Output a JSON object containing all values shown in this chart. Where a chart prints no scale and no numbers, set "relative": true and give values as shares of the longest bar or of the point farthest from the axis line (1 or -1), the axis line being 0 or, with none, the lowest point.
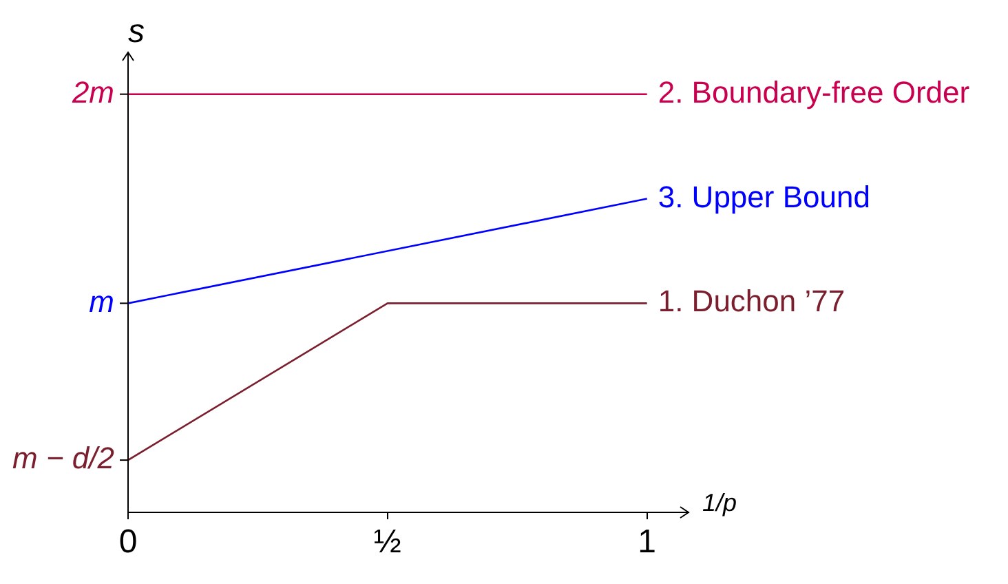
{
  "chart_data": {
    "type": "line",
    "xlabel": "1/p",
    "ylabel": "s",
    "relative": true,
    "xlim": [
      0,
      1.08
    ],
    "xticks": [
      0,
      {
        "value": 0.5,
        "label": "½"
      },
      1
    ],
    "series": [
      {
        "name": "1. Duchon ’77",
        "color": "#7b1f2e",
        "x": [
          0,
          0.5,
          1
        ],
        "values": [
          0.125,
          0.5,
          0.5
        ]
      },
      {
        "name": "2. Boundary-free Order",
        "color": "#c8004f",
        "x": [
          0,
          1
        ],
        "values": [
          1,
          1
        ]
      },
      {
        "name": "3. Upper Bound",
        "color": "#0000ff",
        "x": [
          0,
          1
        ],
        "values": [
          0.5,
          0.75
        ]
      }
    ],
    "annotations": [
      "m − d/2",
      "m",
      "2m"
    ],
    "grid": false,
    "legend": false,
    "marker": "none",
    "line_style": "solid"
  }
}
